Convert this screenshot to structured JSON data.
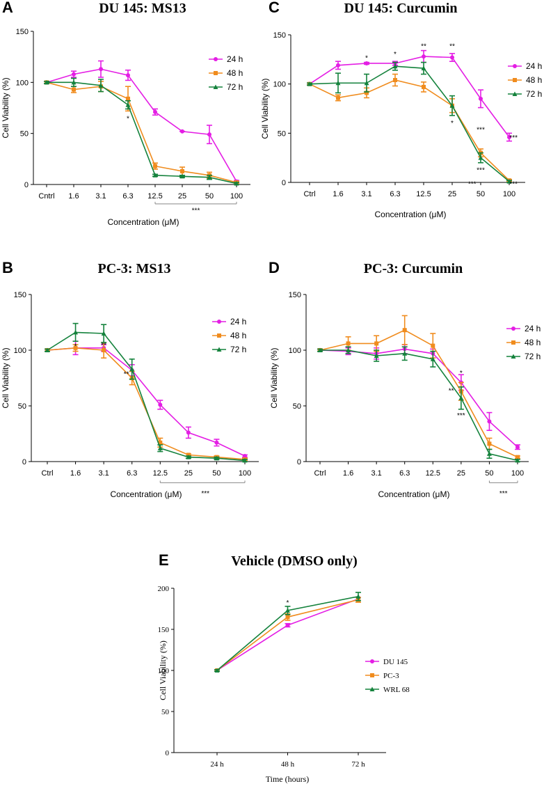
{
  "colors": {
    "h24": "#e41ee4",
    "h48": "#f08c1e",
    "h72": "#14823c",
    "bracket": "#888888",
    "axis": "#000000"
  },
  "chart_data": [
    {
      "id": "A",
      "type": "line",
      "letter": "A",
      "title": "DU 145: MS13",
      "xlabel": "Concentration (μM)",
      "ylabel": "Cell Viability (%)",
      "ylim": [
        0,
        150
      ],
      "yticks": [
        "0",
        "50",
        "100",
        "150"
      ],
      "categories": [
        "Cntrl",
        "1.6",
        "3.1",
        "6.3",
        "12.5",
        "25",
        "50",
        "100"
      ],
      "series": [
        {
          "name": "24 h",
          "color": "h24",
          "marker": "circle",
          "values": [
            100,
            108,
            113,
            107,
            71,
            52,
            49,
            3
          ],
          "errors": [
            1,
            3,
            8,
            5,
            3,
            0,
            9,
            1
          ]
        },
        {
          "name": "48 h",
          "color": "h48",
          "marker": "square",
          "values": [
            100,
            93,
            96,
            84,
            18,
            13,
            9,
            2
          ],
          "errors": [
            1,
            3,
            5,
            12,
            3,
            4,
            3,
            1
          ]
        },
        {
          "name": "72 h",
          "color": "h72",
          "marker": "triangle",
          "values": [
            100,
            100,
            97,
            78,
            9,
            8,
            7,
            1
          ],
          "errors": [
            1,
            4,
            6,
            4,
            1,
            1,
            2,
            1
          ]
        }
      ],
      "annotations": [
        {
          "text": "*",
          "x": 3,
          "y": 65
        },
        {
          "text": "***",
          "x": 5.5,
          "y": -25
        }
      ],
      "bracket": {
        "from": 4,
        "to": 7,
        "y": -19
      }
    },
    {
      "id": "C",
      "type": "line",
      "letter": "C",
      "title": "DU 145: Curcumin",
      "xlabel": "Concentration (μM)",
      "ylabel": "Cell Viability (%)",
      "ylim": [
        0,
        150
      ],
      "yticks": [
        "0",
        "50",
        "100",
        "150"
      ],
      "categories": [
        "Ctrl",
        "1.6",
        "3.1",
        "6.3",
        "12.5",
        "25",
        "50",
        "100"
      ],
      "series": [
        {
          "name": "24 h",
          "color": "h24",
          "marker": "circle",
          "values": [
            100,
            119,
            121,
            121,
            128,
            127,
            85,
            46
          ],
          "errors": [
            1,
            4,
            1,
            2,
            6,
            4,
            9,
            4
          ]
        },
        {
          "name": "48 h",
          "color": "h48",
          "marker": "square",
          "values": [
            100,
            86,
            91,
            104,
            97,
            78,
            30,
            2
          ],
          "errors": [
            1,
            3,
            5,
            6,
            5,
            7,
            4,
            1
          ]
        },
        {
          "name": "72 h",
          "color": "h72",
          "marker": "triangle",
          "values": [
            100,
            101,
            101,
            118,
            116,
            78,
            25,
            1
          ],
          "errors": [
            1,
            10,
            9,
            4,
            6,
            10,
            5,
            1
          ]
        }
      ],
      "annotations": [
        {
          "text": "*",
          "x": 2,
          "y": 127
        },
        {
          "text": "*",
          "x": 3,
          "y": 131
        },
        {
          "text": "**",
          "x": 4,
          "y": 139
        },
        {
          "text": "**",
          "x": 5,
          "y": 139
        },
        {
          "text": "*",
          "x": 5,
          "y": 61
        },
        {
          "text": "***",
          "x": 6,
          "y": 54
        },
        {
          "text": "***",
          "x": 6,
          "y": 13
        },
        {
          "text": "***",
          "x": 5.7,
          "y": -1
        },
        {
          "text": "***",
          "x": 7.15,
          "y": 46
        },
        {
          "text": "***",
          "x": 7.15,
          "y": -1
        }
      ]
    },
    {
      "id": "B",
      "type": "line",
      "letter": "B",
      "title": "PC-3: MS13",
      "xlabel": "Concentration (μM)",
      "ylabel": "Cell Viability (%)",
      "ylim": [
        0,
        150
      ],
      "yticks": [
        "0",
        "50",
        "100",
        "150"
      ],
      "categories": [
        "Ctrl",
        "1.6",
        "3.1",
        "6.3",
        "12.5",
        "25",
        "50",
        "100"
      ],
      "series": [
        {
          "name": "24 h",
          "color": "h24",
          "marker": "circle",
          "values": [
            100,
            102,
            102,
            82,
            51,
            26,
            17,
            5
          ],
          "errors": [
            1,
            6,
            3,
            5,
            4,
            5,
            3,
            1
          ]
        },
        {
          "name": "48 h",
          "color": "h48",
          "marker": "square",
          "values": [
            100,
            102,
            100,
            75,
            17,
            6,
            4,
            2
          ],
          "errors": [
            1,
            3,
            7,
            6,
            4,
            1,
            1,
            1
          ]
        },
        {
          "name": "72 h",
          "color": "h72",
          "marker": "triangle",
          "values": [
            100,
            116,
            115,
            83,
            12,
            4,
            3,
            1
          ],
          "errors": [
            1,
            8,
            8,
            9,
            3,
            1,
            1,
            1
          ]
        }
      ],
      "annotations": [
        {
          "text": "*",
          "x": 1,
          "y": 104
        },
        {
          "text": "**",
          "x": 2,
          "y": 105
        },
        {
          "text": "**",
          "x": 2.8,
          "y": 79
        }
      ],
      "bracket": {
        "from": 4,
        "to": 7,
        "y": -19
      },
      "bracket_label": {
        "text": "***",
        "x": 5.6,
        "y": -28
      }
    },
    {
      "id": "D",
      "type": "line",
      "letter": "D",
      "title": "PC-3: Curcumin",
      "xlabel": "Concentration (μM)",
      "ylabel": "Cell Viability (%)",
      "ylim": [
        0,
        150
      ],
      "yticks": [
        "0",
        "50",
        "100",
        "150"
      ],
      "categories": [
        "Ctrl",
        "1.6",
        "3.1",
        "6.3",
        "12.5",
        "25",
        "50",
        "100"
      ],
      "series": [
        {
          "name": "24 h",
          "color": "h24",
          "marker": "circle",
          "values": [
            100,
            99,
            97,
            101,
            97,
            71,
            36,
            13
          ],
          "errors": [
            1,
            3,
            5,
            4,
            4,
            7,
            8,
            2
          ]
        },
        {
          "name": "48 h",
          "color": "h48",
          "marker": "square",
          "values": [
            100,
            106,
            106,
            118,
            104,
            63,
            16,
            4
          ],
          "errors": [
            1,
            6,
            7,
            13,
            11,
            8,
            5,
            1
          ]
        },
        {
          "name": "72 h",
          "color": "h72",
          "marker": "triangle",
          "values": [
            100,
            100,
            95,
            97,
            92,
            57,
            7,
            1
          ],
          "errors": [
            1,
            3,
            5,
            6,
            7,
            10,
            4,
            1
          ]
        }
      ],
      "annotations": [
        {
          "text": "*",
          "x": 5,
          "y": 80
        },
        {
          "text": "**",
          "x": 4.65,
          "y": 64
        },
        {
          "text": "***",
          "x": 5,
          "y": 42
        }
      ],
      "bracket": {
        "from": 6,
        "to": 7,
        "y": -19
      },
      "bracket_label": {
        "text": "***",
        "x": 6.5,
        "y": -28
      }
    },
    {
      "id": "E",
      "type": "line",
      "letter": "E",
      "title": "Vehicle (DMSO only)",
      "xlabel": "Time (hours)",
      "ylabel": "Cell Viability (%)",
      "ylim": [
        0,
        200
      ],
      "yticks": [
        "0",
        "50",
        "100",
        "150",
        "200"
      ],
      "categories": [
        "24 h",
        "48 h",
        "72 h"
      ],
      "series": [
        {
          "name": "DU 145",
          "color": "h24",
          "marker": "circle",
          "values": [
            100,
            155,
            187
          ],
          "errors": [
            1,
            2,
            2
          ]
        },
        {
          "name": "PC-3",
          "color": "h48",
          "marker": "square",
          "values": [
            100,
            165,
            186
          ],
          "errors": [
            1,
            4,
            3
          ]
        },
        {
          "name": "WRL 68",
          "color": "h72",
          "marker": "triangle",
          "values": [
            100,
            173,
            190
          ],
          "errors": [
            1,
            5,
            5
          ]
        }
      ],
      "annotations": [
        {
          "text": "*",
          "x": 1,
          "y": 183
        }
      ]
    }
  ]
}
